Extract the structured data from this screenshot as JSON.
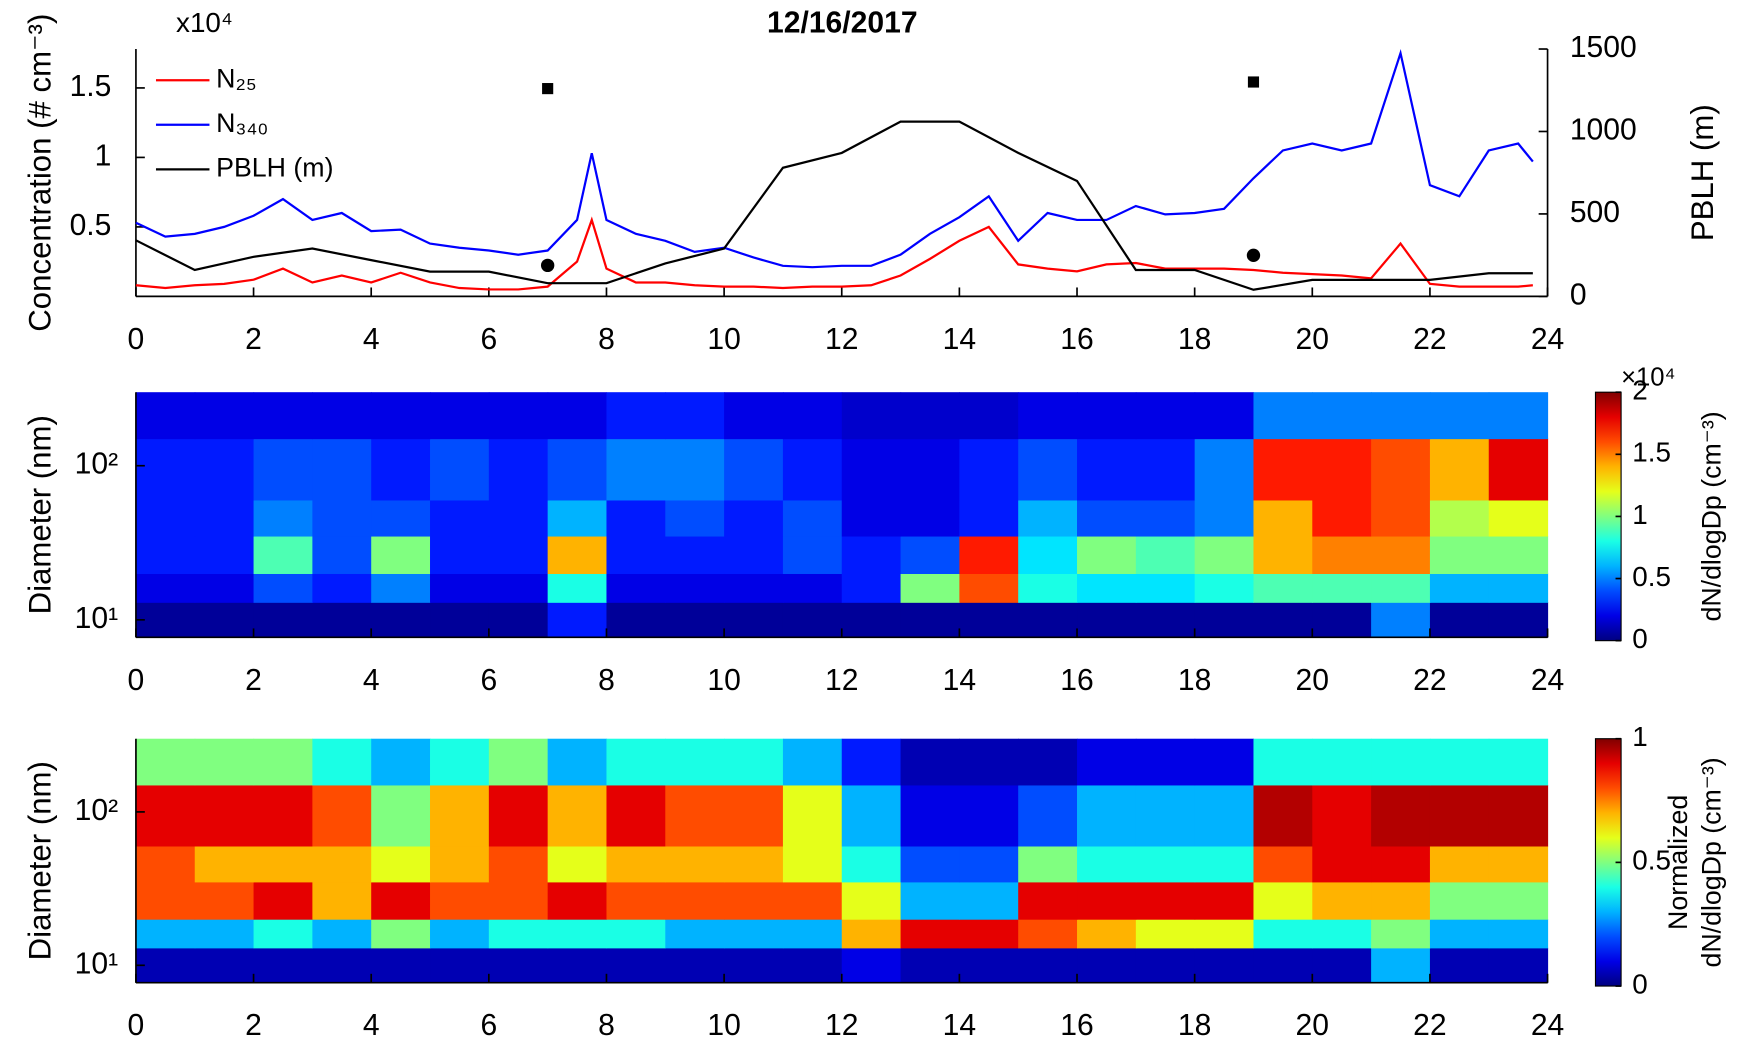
{
  "chart_data": [
    {
      "type": "line",
      "title": "12/16/2017",
      "exponent_label": "x10⁴",
      "ylabel": "Concentration (# cm⁻³)",
      "y2label": "PBLH (m)",
      "xlim": [
        0,
        24
      ],
      "xticks": [
        0,
        2,
        4,
        6,
        8,
        10,
        12,
        14,
        16,
        18,
        20,
        22,
        24
      ],
      "ylim": [
        0,
        1.78
      ],
      "yticks": [
        0.5,
        1,
        1.5
      ],
      "y2lim": [
        0,
        1500
      ],
      "y2ticks": [
        0,
        500,
        1000,
        1500
      ],
      "legend": "upper left",
      "series": [
        {
          "name": "N₂₅",
          "color": "#ff0000",
          "x": [
            0,
            0.5,
            1,
            1.5,
            2,
            2.5,
            3,
            3.5,
            4,
            4.5,
            5,
            5.5,
            6,
            6.5,
            7,
            7.5,
            7.75,
            8,
            8.5,
            9,
            9.5,
            10,
            10.5,
            11,
            11.5,
            12,
            12.5,
            13,
            13.5,
            14,
            14.5,
            15,
            15.5,
            16,
            16.5,
            17,
            17.5,
            18,
            18.5,
            19,
            19.5,
            20,
            20.5,
            21,
            21.5,
            22,
            22.5,
            23,
            23.5,
            23.75
          ],
          "values": [
            0.08,
            0.06,
            0.08,
            0.09,
            0.12,
            0.2,
            0.1,
            0.15,
            0.1,
            0.17,
            0.1,
            0.06,
            0.05,
            0.05,
            0.07,
            0.25,
            0.55,
            0.2,
            0.1,
            0.1,
            0.08,
            0.07,
            0.07,
            0.06,
            0.07,
            0.07,
            0.08,
            0.15,
            0.27,
            0.4,
            0.5,
            0.23,
            0.2,
            0.18,
            0.23,
            0.24,
            0.2,
            0.2,
            0.2,
            0.19,
            0.17,
            0.16,
            0.15,
            0.13,
            0.38,
            0.09,
            0.07,
            0.07,
            0.07,
            0.08
          ]
        },
        {
          "name": "N₃₄₀",
          "color": "#0000ff",
          "x": [
            0,
            0.5,
            1,
            1.5,
            2,
            2.5,
            3,
            3.5,
            4,
            4.5,
            5,
            5.5,
            6,
            6.5,
            7,
            7.5,
            7.75,
            8,
            8.5,
            9,
            9.5,
            10,
            10.5,
            11,
            11.5,
            12,
            12.5,
            13,
            13.5,
            14,
            14.5,
            15,
            15.5,
            16,
            16.5,
            17,
            17.5,
            18,
            18.5,
            19,
            19.5,
            20,
            20.5,
            21,
            21.5,
            22,
            22.5,
            23,
            23.5,
            23.75
          ],
          "values": [
            0.53,
            0.43,
            0.45,
            0.5,
            0.58,
            0.7,
            0.55,
            0.6,
            0.47,
            0.48,
            0.38,
            0.35,
            0.33,
            0.3,
            0.33,
            0.55,
            1.03,
            0.55,
            0.45,
            0.4,
            0.32,
            0.35,
            0.28,
            0.22,
            0.21,
            0.22,
            0.22,
            0.3,
            0.45,
            0.57,
            0.72,
            0.4,
            0.6,
            0.55,
            0.55,
            0.65,
            0.59,
            0.6,
            0.63,
            0.85,
            1.05,
            1.1,
            1.05,
            1.1,
            1.75,
            0.8,
            0.72,
            1.05,
            1.1,
            0.97
          ]
        },
        {
          "name": "PBLH (m)",
          "color": "#000000",
          "axis": "y2",
          "x": [
            0,
            1,
            2,
            3,
            4,
            5,
            6,
            7,
            8,
            9,
            10,
            11,
            12,
            13,
            14,
            15,
            16,
            17,
            18,
            19,
            20,
            21,
            22,
            23,
            23.75
          ],
          "values": [
            340,
            160,
            240,
            290,
            220,
            150,
            150,
            80,
            80,
            200,
            290,
            780,
            870,
            1060,
            1060,
            870,
            700,
            160,
            160,
            40,
            100,
            100,
            100,
            140,
            140
          ]
        }
      ],
      "markers": [
        {
          "shape": "square",
          "color": "#000000",
          "axis": "y2",
          "x": [
            7,
            19
          ],
          "values": [
            1260,
            1300
          ]
        },
        {
          "shape": "circle",
          "color": "#000000",
          "axis": "y2",
          "x": [
            7,
            19
          ],
          "values": [
            188,
            249
          ]
        }
      ]
    },
    {
      "type": "heatmap",
      "ylabel": "Diameter (nm)",
      "colorbar_label": [
        "dN/dlogDp (cm⁻³)"
      ],
      "colorbar_exponent": "×10⁴",
      "xlim": [
        0,
        24
      ],
      "xticks": [
        0,
        2,
        4,
        6,
        8,
        10,
        12,
        14,
        16,
        18,
        20,
        22,
        24
      ],
      "ylim": [
        7.7,
        300
      ],
      "log_y": true,
      "yticks": [
        {
          "value": 10,
          "label": "10¹"
        },
        {
          "value": 100,
          "label": "10²"
        }
      ],
      "clim": [
        0,
        2
      ],
      "cticks": [
        0,
        0.5,
        1,
        1.5,
        2
      ],
      "colormap": "jet",
      "x_bins": [
        0,
        1,
        2,
        3,
        4,
        5,
        6,
        7,
        8,
        9,
        10,
        11,
        12,
        13,
        14,
        15,
        16,
        17,
        18,
        19,
        20,
        21,
        22,
        23,
        24
      ],
      "y_bins": [
        7.7,
        13,
        20,
        35,
        60,
        150,
        300
      ],
      "z": [
        [
          0.05,
          0.05,
          0.05,
          0.05,
          0.05,
          0.05,
          0.05,
          0.3,
          0.05,
          0.05,
          0.05,
          0.05,
          0.05,
          0.05,
          0.05,
          0.05,
          0.05,
          0.05,
          0.05,
          0.05,
          0.05,
          0.5,
          0.05,
          0.05
        ],
        [
          0.2,
          0.2,
          0.4,
          0.3,
          0.5,
          0.2,
          0.2,
          0.8,
          0.2,
          0.2,
          0.2,
          0.2,
          0.3,
          1.0,
          1.6,
          0.8,
          0.7,
          0.7,
          0.8,
          0.9,
          0.9,
          0.9,
          0.6,
          0.6
        ],
        [
          0.3,
          0.3,
          0.9,
          0.4,
          1.0,
          0.3,
          0.3,
          1.4,
          0.3,
          0.3,
          0.3,
          0.4,
          0.3,
          0.4,
          1.7,
          0.7,
          1.0,
          0.9,
          1.0,
          1.4,
          1.5,
          1.5,
          1.0,
          1.0
        ],
        [
          0.3,
          0.3,
          0.5,
          0.4,
          0.4,
          0.3,
          0.3,
          0.6,
          0.3,
          0.4,
          0.3,
          0.4,
          0.2,
          0.2,
          0.3,
          0.6,
          0.4,
          0.4,
          0.5,
          1.4,
          1.7,
          1.6,
          1.1,
          1.2
        ],
        [
          0.3,
          0.3,
          0.4,
          0.4,
          0.3,
          0.4,
          0.3,
          0.4,
          0.5,
          0.5,
          0.4,
          0.3,
          0.2,
          0.2,
          0.3,
          0.4,
          0.3,
          0.3,
          0.5,
          1.7,
          1.7,
          1.6,
          1.4,
          1.8
        ],
        [
          0.2,
          0.2,
          0.2,
          0.2,
          0.2,
          0.2,
          0.2,
          0.2,
          0.3,
          0.3,
          0.2,
          0.2,
          0.15,
          0.15,
          0.15,
          0.2,
          0.2,
          0.2,
          0.2,
          0.5,
          0.5,
          0.5,
          0.5,
          0.5
        ]
      ]
    },
    {
      "type": "heatmap",
      "ylabel": "Diameter (nm)",
      "colorbar_label": [
        "Normalized",
        "dN/dlogDp (cm⁻³)"
      ],
      "xlim": [
        0,
        24
      ],
      "xticks": [
        0,
        2,
        4,
        6,
        8,
        10,
        12,
        14,
        16,
        18,
        20,
        22,
        24
      ],
      "ylim": [
        7.7,
        300
      ],
      "log_y": true,
      "yticks": [
        {
          "value": 10,
          "label": "10¹"
        },
        {
          "value": 100,
          "label": "10²"
        }
      ],
      "clim": [
        0,
        1
      ],
      "cticks": [
        0,
        0.5,
        1
      ],
      "colormap": "jet",
      "x_bins": [
        0,
        1,
        2,
        3,
        4,
        5,
        6,
        7,
        8,
        9,
        10,
        11,
        12,
        13,
        14,
        15,
        16,
        17,
        18,
        19,
        20,
        21,
        22,
        23,
        24
      ],
      "y_bins": [
        7.7,
        13,
        20,
        35,
        60,
        150,
        300
      ],
      "z": [
        [
          0.05,
          0.05,
          0.05,
          0.05,
          0.05,
          0.05,
          0.05,
          0.05,
          0.05,
          0.05,
          0.05,
          0.05,
          0.1,
          0.05,
          0.05,
          0.05,
          0.05,
          0.05,
          0.05,
          0.05,
          0.05,
          0.3,
          0.05,
          0.05
        ],
        [
          0.3,
          0.3,
          0.4,
          0.3,
          0.5,
          0.3,
          0.4,
          0.4,
          0.4,
          0.3,
          0.3,
          0.3,
          0.7,
          0.9,
          0.9,
          0.8,
          0.7,
          0.6,
          0.6,
          0.4,
          0.4,
          0.5,
          0.3,
          0.3
        ],
        [
          0.8,
          0.8,
          0.9,
          0.7,
          0.9,
          0.8,
          0.8,
          0.9,
          0.8,
          0.8,
          0.8,
          0.8,
          0.6,
          0.3,
          0.3,
          0.9,
          0.9,
          0.9,
          0.9,
          0.6,
          0.7,
          0.7,
          0.5,
          0.5
        ],
        [
          0.8,
          0.7,
          0.7,
          0.7,
          0.6,
          0.7,
          0.8,
          0.6,
          0.7,
          0.7,
          0.7,
          0.6,
          0.4,
          0.2,
          0.2,
          0.5,
          0.4,
          0.4,
          0.4,
          0.8,
          0.9,
          0.9,
          0.7,
          0.7
        ],
        [
          0.9,
          0.9,
          0.9,
          0.8,
          0.5,
          0.7,
          0.9,
          0.7,
          0.9,
          0.8,
          0.8,
          0.6,
          0.3,
          0.1,
          0.1,
          0.2,
          0.3,
          0.3,
          0.3,
          0.95,
          0.9,
          0.95,
          0.95,
          0.95
        ],
        [
          0.5,
          0.5,
          0.5,
          0.4,
          0.3,
          0.4,
          0.5,
          0.3,
          0.4,
          0.4,
          0.4,
          0.3,
          0.15,
          0.05,
          0.05,
          0.05,
          0.1,
          0.1,
          0.1,
          0.4,
          0.4,
          0.4,
          0.4,
          0.4
        ]
      ]
    }
  ]
}
